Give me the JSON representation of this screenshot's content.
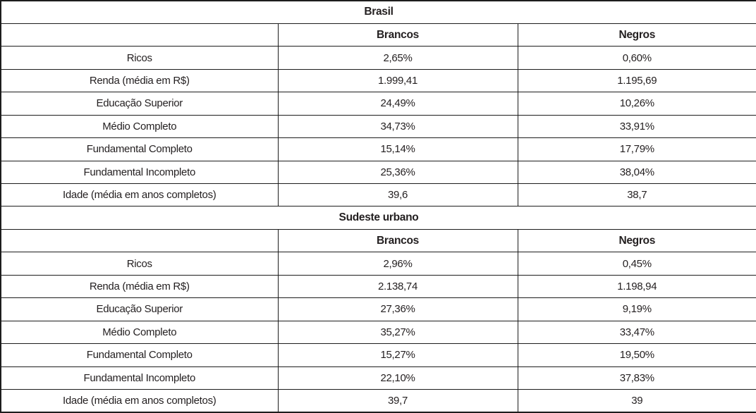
{
  "table": {
    "colors": {
      "border": "#1d1d1d",
      "text": "#231f20",
      "background": "#ffffff"
    },
    "sections": [
      {
        "title": "Brasil",
        "columns": {
          "brancos": "Brancos",
          "negros": "Negros"
        },
        "rows": [
          {
            "label": "Ricos",
            "brancos": "2,65%",
            "negros": "0,60%"
          },
          {
            "label": "Renda (média em R$)",
            "brancos": "1.999,41",
            "negros": "1.195,69"
          },
          {
            "label": "Educação Superior",
            "brancos": "24,49%",
            "negros": "10,26%"
          },
          {
            "label": "Médio Completo",
            "brancos": "34,73%",
            "negros": "33,91%"
          },
          {
            "label": "Fundamental Completo",
            "brancos": "15,14%",
            "negros": "17,79%"
          },
          {
            "label": "Fundamental Incompleto",
            "brancos": "25,36%",
            "negros": "38,04%"
          },
          {
            "label": "Idade (média em anos completos)",
            "brancos": "39,6",
            "negros": "38,7"
          }
        ]
      },
      {
        "title": "Sudeste urbano",
        "columns": {
          "brancos": "Brancos",
          "negros": "Negros"
        },
        "rows": [
          {
            "label": "Ricos",
            "brancos": "2,96%",
            "negros": "0,45%"
          },
          {
            "label": "Renda (média em R$)",
            "brancos": "2.138,74",
            "negros": "1.198,94"
          },
          {
            "label": "Educação Superior",
            "brancos": "27,36%",
            "negros": "9,19%"
          },
          {
            "label": "Médio Completo",
            "brancos": "35,27%",
            "negros": "33,47%"
          },
          {
            "label": "Fundamental Completo",
            "brancos": "15,27%",
            "negros": "19,50%"
          },
          {
            "label": "Fundamental Incompleto",
            "brancos": "22,10%",
            "negros": "37,83%"
          },
          {
            "label": "Idade (média em anos completos)",
            "brancos": "39,7",
            "negros": "39"
          }
        ]
      }
    ]
  }
}
